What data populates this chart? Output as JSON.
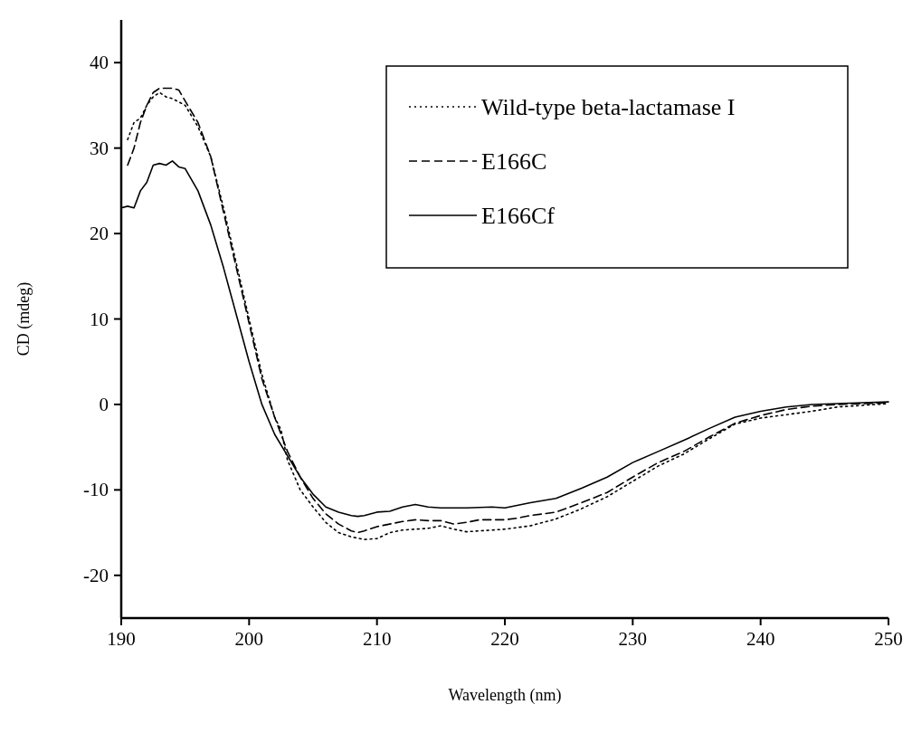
{
  "chart_data": {
    "type": "line",
    "xlabel": "Wavelength (nm)",
    "ylabel": "CD (mdeg)",
    "xlim": [
      190,
      250
    ],
    "xticks": [
      190,
      200,
      210,
      220,
      230,
      240,
      250
    ],
    "ylim": [
      -25,
      45
    ],
    "yticks": [
      -20,
      -10,
      0,
      10,
      20,
      30,
      40
    ],
    "grid": false,
    "legend": "top right",
    "marker": "none",
    "series": [
      {
        "name": "Wild-type beta-lactamase I",
        "color": "#000000",
        "line_style": "dotted",
        "x": [
          190.5,
          191,
          191.5,
          192,
          192.5,
          193,
          193.5,
          194,
          195,
          196,
          197,
          198,
          199,
          200,
          201,
          202,
          202.5,
          203,
          204,
          205,
          206,
          207,
          208,
          209,
          210,
          211,
          212,
          213,
          214,
          215,
          216,
          217,
          218,
          220,
          222,
          224,
          226,
          228,
          230,
          232,
          234,
          236,
          238,
          240,
          242,
          244,
          246,
          248,
          250
        ],
        "values": [
          31,
          33,
          33.5,
          35,
          36,
          36.5,
          36,
          35.8,
          35,
          32.5,
          29,
          23,
          16.5,
          10,
          3.5,
          -1.5,
          -3,
          -6.5,
          -10,
          -12,
          -13.8,
          -15,
          -15.5,
          -15.8,
          -15.7,
          -15,
          -14.7,
          -14.6,
          -14.5,
          -14.2,
          -14.6,
          -14.9,
          -14.8,
          -14.6,
          -14.2,
          -13.4,
          -12.2,
          -10.8,
          -9,
          -7.2,
          -5.8,
          -4,
          -2.3,
          -1.6,
          -1.2,
          -0.8,
          -0.3,
          -0.1,
          0.1
        ]
      },
      {
        "name": "E166C",
        "color": "#000000",
        "line_style": "dashed",
        "x": [
          190.5,
          191,
          191.5,
          192,
          192.5,
          193,
          194,
          194.5,
          195,
          196,
          197,
          198,
          199,
          200,
          201,
          202,
          203,
          204,
          205,
          206,
          207,
          208,
          208.5,
          209,
          210,
          211,
          212,
          213,
          214,
          215,
          216,
          217,
          218,
          220,
          221,
          222,
          224,
          226,
          228,
          230,
          232,
          234,
          236,
          238,
          240,
          242,
          244,
          246,
          248,
          250
        ],
        "values": [
          28,
          30,
          33,
          35,
          36.5,
          37,
          37,
          36.8,
          35.5,
          33,
          29,
          22.5,
          16,
          9.5,
          3,
          -1.5,
          -5.5,
          -8.5,
          -11,
          -12.8,
          -14,
          -14.8,
          -15,
          -14.8,
          -14.3,
          -14,
          -13.7,
          -13.5,
          -13.6,
          -13.6,
          -14,
          -13.8,
          -13.5,
          -13.5,
          -13.3,
          -13,
          -12.6,
          -11.5,
          -10.3,
          -8.5,
          -6.8,
          -5.5,
          -3.8,
          -2.2,
          -1.3,
          -0.6,
          -0.2,
          0,
          0.1,
          0.2
        ]
      },
      {
        "name": "E166Cf",
        "color": "#000000",
        "line_style": "solid",
        "x": [
          190,
          190.5,
          191,
          191.5,
          192,
          192.5,
          193,
          193.5,
          194,
          194.5,
          195,
          196,
          197,
          198,
          199,
          200,
          201,
          202,
          203,
          204,
          205,
          206,
          207,
          208,
          208.5,
          209,
          210,
          211,
          212,
          213,
          214,
          215,
          217,
          219,
          220,
          222,
          224,
          226,
          228,
          230,
          232,
          234,
          236,
          238,
          240,
          242,
          244,
          246,
          248,
          250
        ],
        "values": [
          23,
          23.2,
          23,
          25,
          26,
          28,
          28.2,
          28,
          28.5,
          27.8,
          27.6,
          25,
          21,
          16,
          10.5,
          5,
          0,
          -3.5,
          -6,
          -8.5,
          -10.5,
          -12,
          -12.6,
          -13,
          -13.1,
          -13,
          -12.6,
          -12.5,
          -12,
          -11.7,
          -12,
          -12.1,
          -12.1,
          -12,
          -12.1,
          -11.5,
          -11,
          -9.8,
          -8.5,
          -6.8,
          -5.5,
          -4.2,
          -2.8,
          -1.5,
          -0.8,
          -0.3,
          0,
          0.1,
          0.2,
          0.3
        ]
      }
    ]
  }
}
